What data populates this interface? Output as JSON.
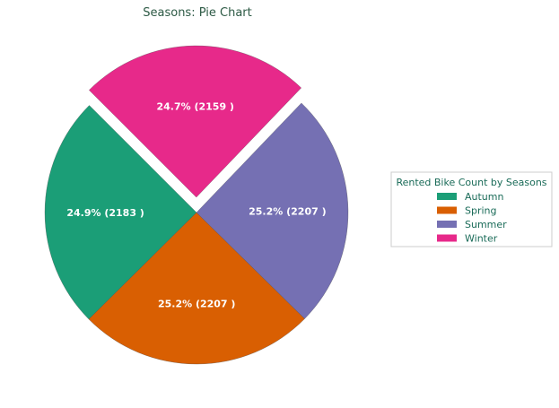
{
  "chart_data": {
    "type": "pie",
    "title": "Seasons: Pie Chart",
    "legend_title": "Rented Bike Count by Seasons",
    "legend_position": "center-right",
    "categories": [
      "Autumn",
      "Spring",
      "Summer",
      "Winter"
    ],
    "values": [
      2183,
      2207,
      2207,
      2159
    ],
    "percent_labels": [
      "24.9% (2183 )",
      "25.2% (2207 )",
      "25.2% (2207 )",
      "24.7% (2159 )"
    ],
    "colors": [
      "#1b9e77",
      "#d95f02",
      "#7570b3",
      "#e7298a"
    ],
    "exploded": [
      "Winter"
    ],
    "start_angle_deg": 135,
    "direction": "counterclockwise"
  }
}
